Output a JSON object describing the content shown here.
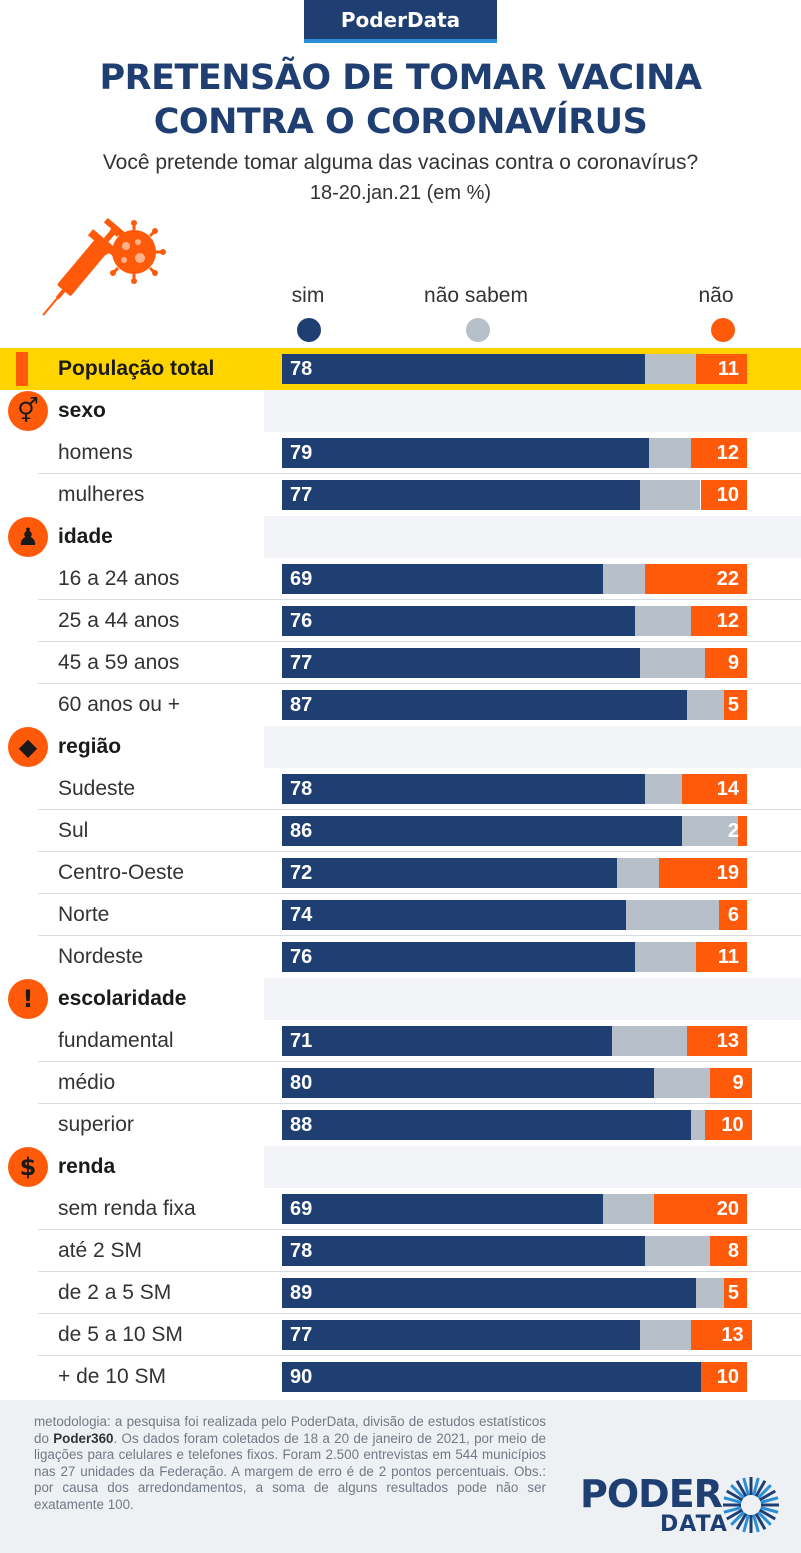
{
  "brand": "PoderData",
  "title_line1": "PRETENSÃO DE TOMAR VACINA",
  "title_line2": "CONTRA O CORONAVÍRUS",
  "subtitle": "Você pretende tomar alguma das vacinas contra o coronavírus?",
  "date": "18-20.jan.21 (em %)",
  "legend": {
    "sim": "sim",
    "nao_sabem": "não sabem",
    "nao": "não"
  },
  "colors": {
    "sim": "#1f3f73",
    "nao_sabem": "#b7c0c8",
    "nao": "#ff5a0a",
    "highlight": "#ffd400"
  },
  "chart_data": {
    "type": "bar",
    "stacked": true,
    "orientation": "horizontal",
    "unit": "%",
    "series": [
      {
        "name": "sim",
        "values": [
          78,
          79,
          77,
          69,
          76,
          77,
          87,
          78,
          86,
          72,
          74,
          76,
          71,
          80,
          88,
          69,
          78,
          89,
          77,
          90
        ]
      },
      {
        "name": "não sabem",
        "values": [
          11,
          9,
          13,
          9,
          12,
          14,
          8,
          8,
          12,
          9,
          20,
          13,
          16,
          12,
          3,
          11,
          14,
          6,
          11,
          0
        ]
      },
      {
        "name": "não",
        "values": [
          11,
          12,
          10,
          22,
          12,
          9,
          5,
          14,
          2,
          19,
          6,
          11,
          13,
          9,
          10,
          20,
          8,
          5,
          13,
          10
        ]
      }
    ],
    "rows": [
      {
        "kind": "total",
        "label": "População total",
        "sim": 78,
        "nao": 11,
        "ns": 11
      },
      {
        "kind": "cat",
        "label": "sexo",
        "icon": "gender-icon"
      },
      {
        "kind": "row",
        "label": "homens",
        "sim": 79,
        "nao": 12,
        "ns": 9
      },
      {
        "kind": "row",
        "label": "mulheres",
        "sim": 77,
        "nao": 10,
        "ns": 13
      },
      {
        "kind": "cat",
        "label": "idade",
        "icon": "person-icon"
      },
      {
        "kind": "row",
        "label": "16 a 24 anos",
        "sim": 69,
        "nao": 22,
        "ns": 9
      },
      {
        "kind": "row",
        "label": "25 a 44 anos",
        "sim": 76,
        "nao": 12,
        "ns": 12
      },
      {
        "kind": "row",
        "label": "45 a 59 anos",
        "sim": 77,
        "nao": 9,
        "ns": 14
      },
      {
        "kind": "row",
        "label": "60 anos ou +",
        "sim": 87,
        "nao": 5,
        "ns": 8
      },
      {
        "kind": "cat",
        "label": "região",
        "icon": "brazil-map-icon"
      },
      {
        "kind": "row",
        "label": "Sudeste",
        "sim": 78,
        "nao": 14,
        "ns": 8
      },
      {
        "kind": "row",
        "label": "Sul",
        "sim": 86,
        "nao": 2,
        "ns": 12
      },
      {
        "kind": "row",
        "label": "Centro-Oeste",
        "sim": 72,
        "nao": 19,
        "ns": 9
      },
      {
        "kind": "row",
        "label": "Norte",
        "sim": 74,
        "nao": 6,
        "ns": 20
      },
      {
        "kind": "row",
        "label": "Nordeste",
        "sim": 76,
        "nao": 11,
        "ns": 13
      },
      {
        "kind": "cat",
        "label": "escolaridade",
        "icon": "exclamation-icon"
      },
      {
        "kind": "row",
        "label": "fundamental",
        "sim": 71,
        "nao": 13,
        "ns": 16
      },
      {
        "kind": "row",
        "label": "médio",
        "sim": 80,
        "nao": 9,
        "ns": 12
      },
      {
        "kind": "row",
        "label": "superior",
        "sim": 88,
        "nao": 10,
        "ns": 3
      },
      {
        "kind": "cat",
        "label": "renda",
        "icon": "dollar-icon"
      },
      {
        "kind": "row",
        "label": "sem renda fixa",
        "sim": 69,
        "nao": 20,
        "ns": 11
      },
      {
        "kind": "row",
        "label": "até 2 SM",
        "sim": 78,
        "nao": 8,
        "ns": 14
      },
      {
        "kind": "row",
        "label": "de 2 a 5 SM",
        "sim": 89,
        "nao": 5,
        "ns": 6
      },
      {
        "kind": "row",
        "label": "de 5 a 10 SM",
        "sim": 77,
        "nao": 13,
        "ns": 11
      },
      {
        "kind": "row",
        "label": "+ de 10 SM",
        "sim": 90,
        "nao": 10,
        "ns": 0
      }
    ]
  },
  "methodology": {
    "part1": "metodologia: a pesquisa foi realizada pelo PoderData, divisão de estudos estatísticos do ",
    "bold": "Poder360",
    "part2": ". Os dados foram coletados de 18 a 20 de janeiro de 2021, por meio de ligações para celulares e telefones fixos. Foram 2.500 entrevistas em 544 municípios nas 27 unidades da Federação. A margem de erro é de 2 pontos percentuais. Obs.: por causa dos arredondamentos, a soma de alguns resultados pode não ser exatamente 100."
  },
  "logo": {
    "line1": "PODER",
    "line2": "DATA"
  }
}
